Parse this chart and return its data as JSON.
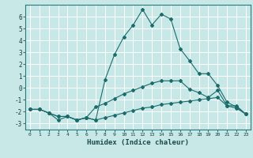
{
  "xlabel": "Humidex (Indice chaleur)",
  "background_color": "#c8e8e8",
  "grid_color": "#b0d8d8",
  "line_color": "#1a6b6b",
  "xlim": [
    -0.5,
    23.5
  ],
  "ylim": [
    -3.5,
    7.0
  ],
  "xticks": [
    0,
    1,
    2,
    3,
    4,
    5,
    6,
    7,
    8,
    9,
    10,
    11,
    12,
    13,
    14,
    15,
    16,
    17,
    18,
    19,
    20,
    21,
    22,
    23
  ],
  "yticks": [
    -3,
    -2,
    -1,
    0,
    1,
    2,
    3,
    4,
    5,
    6
  ],
  "series1_x": [
    0,
    1,
    2,
    3,
    4,
    5,
    6,
    7,
    8,
    9,
    10,
    11,
    12,
    13,
    14,
    15,
    16,
    17,
    18,
    19,
    20,
    21,
    22,
    23
  ],
  "series1_y": [
    -1.8,
    -1.8,
    -2.1,
    -2.7,
    -2.4,
    -2.7,
    -2.5,
    -2.7,
    -2.5,
    -2.3,
    -2.1,
    -1.9,
    -1.7,
    -1.6,
    -1.4,
    -1.3,
    -1.2,
    -1.1,
    -1.0,
    -0.9,
    -0.8,
    -1.5,
    -1.7,
    -2.2
  ],
  "series2_x": [
    0,
    1,
    2,
    3,
    4,
    5,
    6,
    7,
    8,
    9,
    10,
    11,
    12,
    13,
    14,
    15,
    16,
    17,
    18,
    19,
    20,
    21,
    22,
    23
  ],
  "series2_y": [
    -1.8,
    -1.8,
    -2.1,
    -2.4,
    -2.4,
    -2.7,
    -2.5,
    -1.6,
    -1.3,
    -0.9,
    -0.5,
    -0.2,
    0.1,
    0.4,
    0.6,
    0.6,
    0.6,
    -0.1,
    -0.4,
    -0.8,
    -0.2,
    -1.5,
    -1.5,
    -2.2
  ],
  "series3_x": [
    0,
    1,
    2,
    3,
    4,
    5,
    6,
    7,
    8,
    9,
    10,
    11,
    12,
    13,
    14,
    15,
    16,
    17,
    18,
    19,
    20,
    21,
    22,
    23
  ],
  "series3_y": [
    -1.8,
    -1.8,
    -2.1,
    -2.4,
    -2.4,
    -2.7,
    -2.5,
    -2.7,
    0.7,
    2.8,
    4.3,
    5.3,
    6.6,
    5.3,
    6.2,
    5.8,
    3.3,
    2.3,
    1.2,
    1.2,
    0.2,
    -1.2,
    -1.6,
    -2.2
  ]
}
